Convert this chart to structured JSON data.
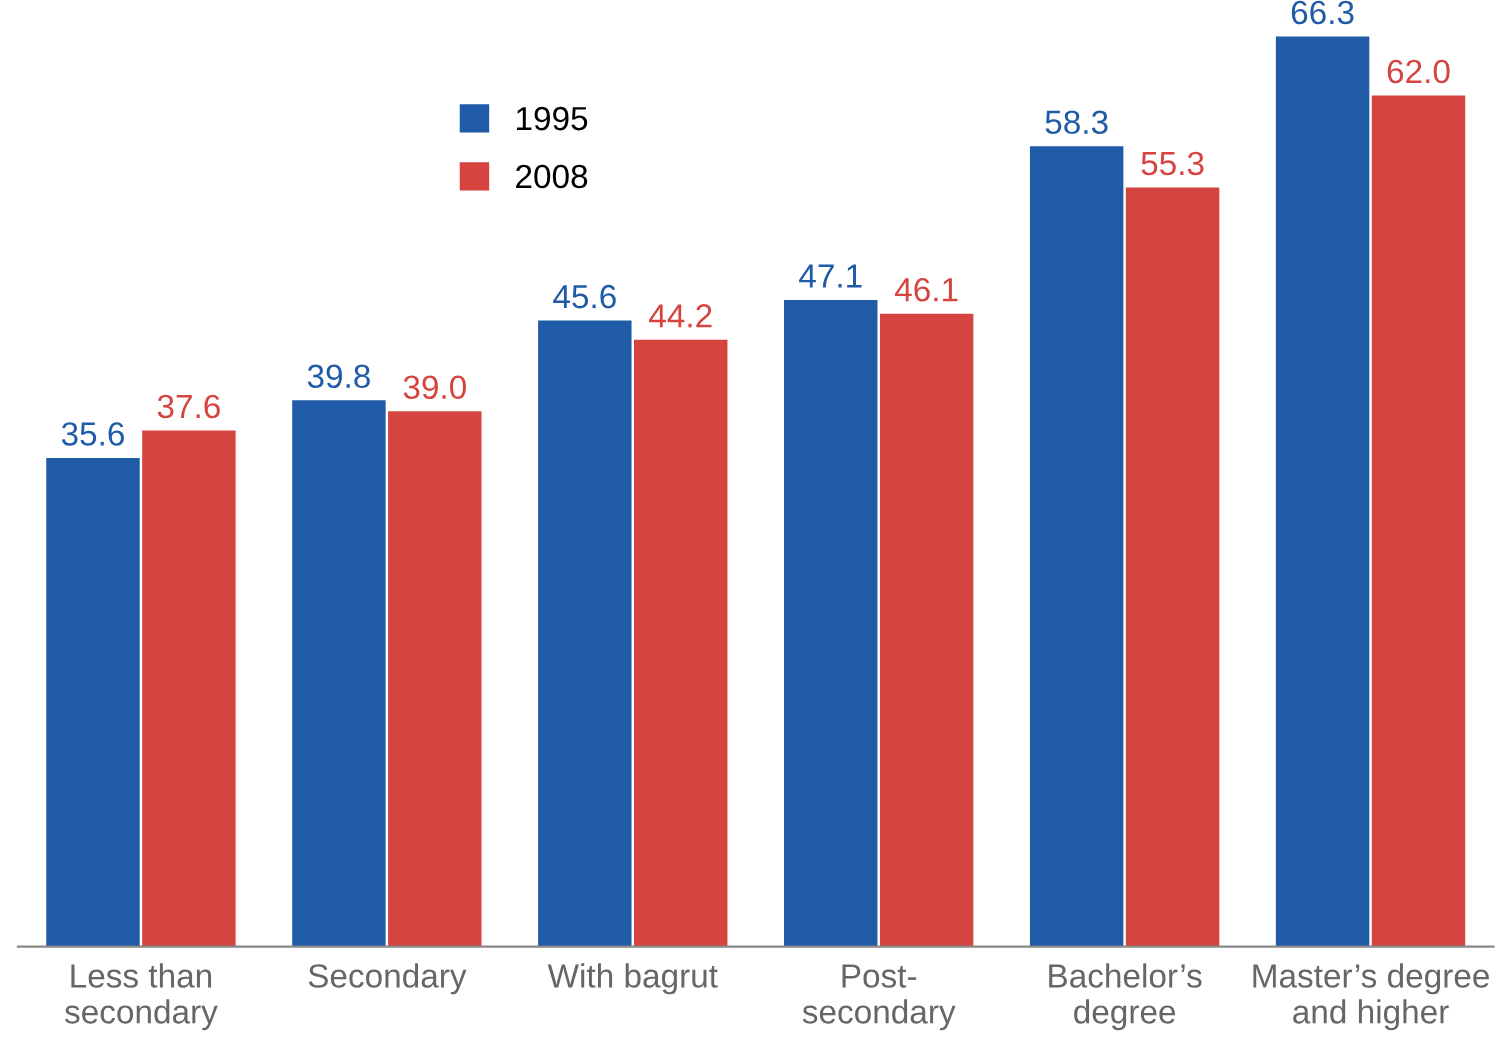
{
  "chart_data": {
    "type": "bar",
    "categories": [
      "Less than\nsecondary",
      "Secondary",
      "With bagrut",
      "Post-\nsecondary",
      "Bachelor’s\ndegree",
      "Master’s degree\nand higher"
    ],
    "series": [
      {
        "name": "1995",
        "color": "#1f5ba6",
        "values": [
          35.6,
          39.8,
          45.6,
          47.1,
          58.3,
          66.3
        ],
        "value_labels": [
          "35.6",
          "39.8",
          "45.6",
          "47.1",
          "58.3",
          "66.3"
        ]
      },
      {
        "name": "2008",
        "color": "#d5443f",
        "values": [
          37.6,
          39.0,
          44.2,
          46.1,
          55.3,
          62.0
        ],
        "value_labels": [
          "37.6",
          "39.0",
          "44.2",
          "46.1",
          "55.3",
          "62.0"
        ]
      }
    ],
    "legend": "top left",
    "grid": false
  }
}
